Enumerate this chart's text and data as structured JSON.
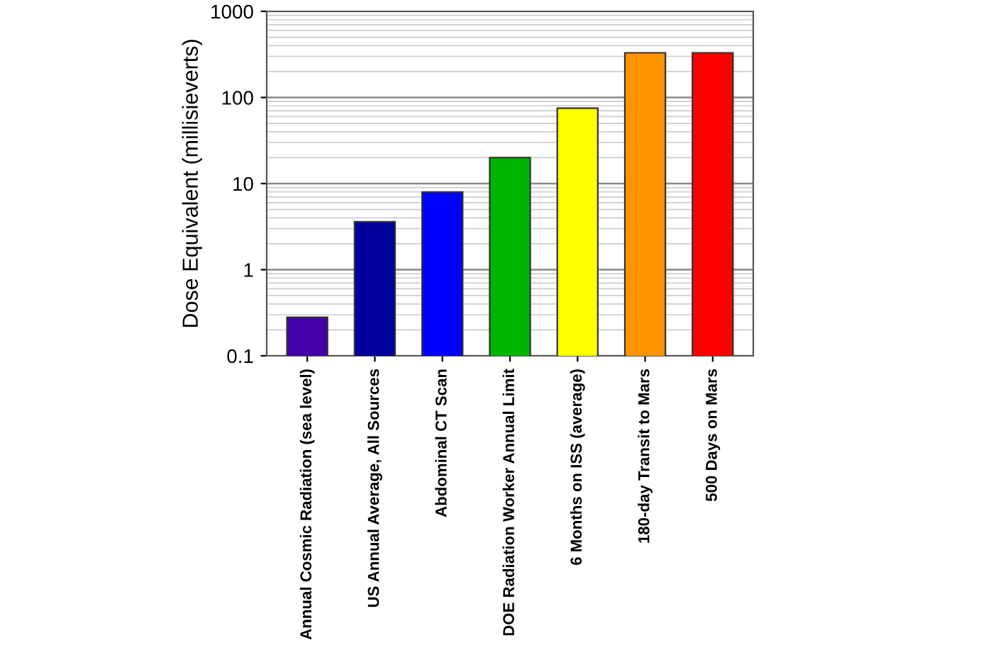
{
  "chart_data": {
    "type": "bar",
    "ylabel": "Dose Equivalent (millisieverts)",
    "categories": [
      "Annual Cosmic Radiation (sea level)",
      "US Annual Average, All Sources",
      "Abdominal CT Scan",
      "DOE Radiation Worker Annual Limit",
      "6 Months on ISS (average)",
      "180-day Transit to Mars",
      "500 Days on Mars"
    ],
    "values": [
      0.28,
      3.6,
      8,
      20,
      75,
      330,
      330
    ],
    "colors": [
      "#4400aa",
      "#00009c",
      "#0000ff",
      "#00b400",
      "#ffff00",
      "#ff9400",
      "#ff0000"
    ],
    "log": true,
    "ylim": [
      0.1,
      1000
    ],
    "yticks": [
      {
        "value": 0.1,
        "label": "0.1"
      },
      1,
      10,
      100,
      1000
    ],
    "grid": "y"
  }
}
